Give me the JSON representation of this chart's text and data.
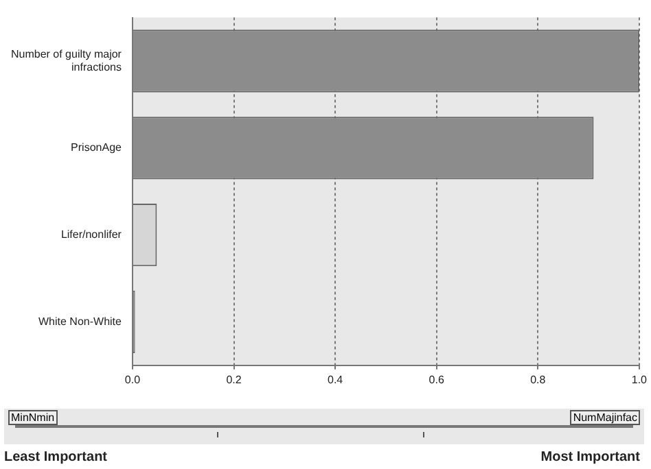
{
  "chart_data": {
    "type": "bar",
    "orientation": "horizontal",
    "categories": [
      "Number of guilty major infractions",
      "PrisonAge",
      "Lifer/nonlifer",
      "White Non-White"
    ],
    "values": [
      1.0,
      0.91,
      0.048,
      0.005
    ],
    "colors": [
      "#8c8c8c",
      "#8c8c8c",
      "#d6d6d6",
      "#8c8c8c"
    ],
    "xlim": [
      0,
      1
    ],
    "xticks": [
      {
        "value": 0,
        "label": "0.0"
      },
      {
        "value": 0.2,
        "label": "0.2"
      },
      {
        "value": 0.4,
        "label": "0.4"
      },
      {
        "value": 0.6,
        "label": "0.6"
      },
      {
        "value": 0.8,
        "label": "0.8"
      },
      {
        "value": 1,
        "label": "1.0"
      }
    ],
    "grid": "x",
    "legend": false,
    "annotations": [
      "MinNmin",
      "NumMajinfac",
      "Least Important",
      "Most Important"
    ]
  }
}
